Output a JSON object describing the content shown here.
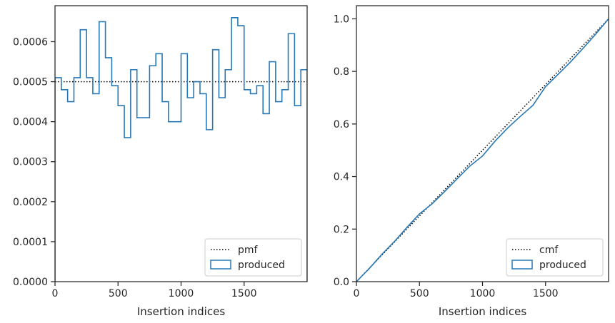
{
  "chart_data": [
    {
      "type": "line",
      "panel": "left",
      "xlabel": "Insertion indices",
      "ylabel": "",
      "xlim": [
        0,
        2000
      ],
      "ylim": [
        0,
        0.00069
      ],
      "xticks": [
        0,
        500,
        1000,
        1500
      ],
      "xtick_labels": [
        "0",
        "500",
        "1000",
        "1500"
      ],
      "yticks": [
        0,
        0.0001,
        0.0002,
        0.0003,
        0.0004,
        0.0005,
        0.0006
      ],
      "ytick_labels": [
        "0.0000",
        "0.0001",
        "0.0002",
        "0.0003",
        "0.0004",
        "0.0005",
        "0.0006"
      ],
      "grid": false,
      "legend_position": "bottom-right",
      "series": [
        {
          "name": "pmf",
          "style": "dotted",
          "color": "#000000",
          "x": [
            0,
            2000
          ],
          "y": [
            0.0005,
            0.0005
          ]
        },
        {
          "name": "produced",
          "style": "step",
          "color": "#2878b5",
          "bin_width": 50,
          "bin_edges_start": 0,
          "values": [
            0.00051,
            0.00048,
            0.00045,
            0.00051,
            0.00063,
            0.00051,
            0.00047,
            0.00065,
            0.00056,
            0.00049,
            0.00044,
            0.00036,
            0.00053,
            0.00041,
            0.00041,
            0.00054,
            0.00057,
            0.00045,
            0.0004,
            0.0004,
            0.00057,
            0.00046,
            0.0005,
            0.00047,
            0.00038,
            0.00058,
            0.00046,
            0.00053,
            0.00066,
            0.00064,
            0.00048,
            0.00047,
            0.00049,
            0.00042,
            0.00055,
            0.00045,
            0.00048,
            0.00062,
            0.00044,
            0.00053
          ]
        }
      ]
    },
    {
      "type": "line",
      "panel": "right",
      "xlabel": "Insertion indices",
      "ylabel": "",
      "xlim": [
        0,
        2000
      ],
      "ylim": [
        0,
        1.05
      ],
      "xticks": [
        0,
        500,
        1000,
        1500
      ],
      "xtick_labels": [
        "0",
        "500",
        "1000",
        "1500"
      ],
      "yticks": [
        0,
        0.2,
        0.4,
        0.6,
        0.8,
        1.0
      ],
      "ytick_labels": [
        "0.0",
        "0.2",
        "0.4",
        "0.6",
        "0.8",
        "1.0"
      ],
      "grid": false,
      "legend_position": "bottom-right",
      "series": [
        {
          "name": "cmf",
          "style": "dotted",
          "color": "#000000",
          "x": [
            0,
            2000
          ],
          "y": [
            0,
            1.0
          ]
        },
        {
          "name": "produced",
          "style": "line",
          "color": "#2878b5",
          "x": [
            0,
            100,
            200,
            300,
            400,
            500,
            600,
            700,
            800,
            900,
            1000,
            1100,
            1200,
            1300,
            1400,
            1500,
            1600,
            1700,
            1800,
            1900,
            2000
          ],
          "y": [
            0,
            0.049,
            0.103,
            0.152,
            0.206,
            0.258,
            0.296,
            0.343,
            0.392,
            0.44,
            0.478,
            0.535,
            0.585,
            0.629,
            0.671,
            0.742,
            0.789,
            0.837,
            0.889,
            0.943,
            1.0
          ]
        }
      ]
    }
  ]
}
